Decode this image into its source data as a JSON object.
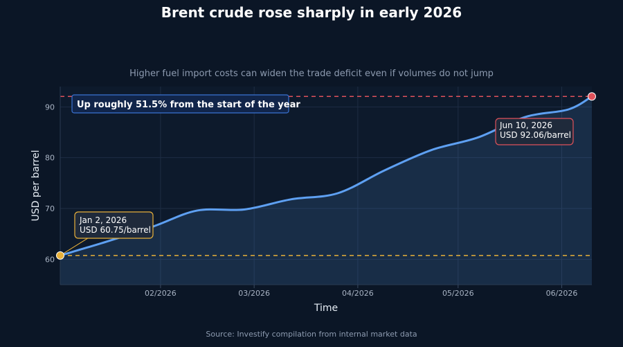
{
  "chart_data": {
    "type": "line",
    "title": "Brent crude rose sharply in early 2026",
    "subtitle": "Higher fuel import costs can widen the trade deficit even if volumes do not jump",
    "source": "Source: Investify compilation from internal market data",
    "xlabel": "Time",
    "ylabel": "USD per barrel",
    "x_range": [
      "2026-01-02",
      "2026-06-10"
    ],
    "ylim": [
      55,
      94
    ],
    "y_ticks": [
      60,
      70,
      80,
      90
    ],
    "x_ticks": [
      {
        "date": "2026-02-01",
        "label": "02/2026"
      },
      {
        "date": "2026-03-01",
        "label": "03/2026"
      },
      {
        "date": "2026-04-01",
        "label": "04/2026"
      },
      {
        "date": "2026-05-01",
        "label": "05/2026"
      },
      {
        "date": "2026-06-01",
        "label": "06/2026"
      }
    ],
    "grid": true,
    "series": [
      {
        "color": "#5ea0f2",
        "points": [
          {
            "x": "2026-01-02",
            "y": 60.75
          },
          {
            "x": "2026-01-16",
            "y": 63.5
          },
          {
            "x": "2026-01-30",
            "y": 66.5
          },
          {
            "x": "2026-02-12",
            "y": 69.6
          },
          {
            "x": "2026-02-26",
            "y": 69.8
          },
          {
            "x": "2026-03-12",
            "y": 71.8
          },
          {
            "x": "2026-03-26",
            "y": 73.0
          },
          {
            "x": "2026-04-09",
            "y": 77.5
          },
          {
            "x": "2026-04-23",
            "y": 81.5
          },
          {
            "x": "2026-05-07",
            "y": 84.0
          },
          {
            "x": "2026-05-21",
            "y": 88.0
          },
          {
            "x": "2026-06-03",
            "y": 89.5
          },
          {
            "x": "2026-06-10",
            "y": 92.06
          }
        ]
      }
    ],
    "reference_lines": [
      {
        "y": 92.06,
        "color": "#e0525b"
      },
      {
        "y": 60.75,
        "color": "#e8b13a"
      }
    ],
    "annotations": [
      {
        "x": "2026-01-02",
        "y": 60.75,
        "line1": "Jan 2, 2026",
        "line2": "USD 60.75/barrel",
        "color": "#e8b13a"
      },
      {
        "x": "2026-06-10",
        "y": 92.06,
        "line1": "Jun 10, 2026",
        "line2": "USD 92.06/barrel",
        "color": "#e0525b"
      }
    ],
    "banner": {
      "text": "Up roughly 51.5% from the start of the year",
      "color": "#3b73d4"
    }
  }
}
